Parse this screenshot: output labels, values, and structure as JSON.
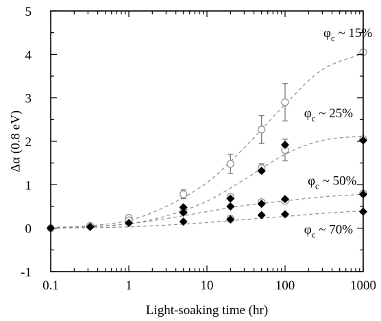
{
  "chart_data": {
    "type": "scatter",
    "title": "",
    "xlabel": "Light-soaking time (hr)",
    "ylabel": "Δα (0.8 eV)",
    "xscale": "log",
    "xlim": [
      0.1,
      1000
    ],
    "ylim": [
      -1,
      5
    ],
    "xticks": [
      "0.1",
      "1",
      "10",
      "100",
      "1000"
    ],
    "yticks": [
      "-1",
      "0",
      "1",
      "2",
      "3",
      "4",
      "5"
    ],
    "grid": false,
    "legend": "none",
    "annotations": [
      {
        "base": "φ",
        "sub": "c",
        "rest": " ~ 15%",
        "x": 310,
        "y": 4.4
      },
      {
        "base": "φ",
        "sub": "c",
        "rest": " ~ 25%",
        "x": 175,
        "y": 2.55
      },
      {
        "base": "φ",
        "sub": "c",
        "rest": " ~ 50%",
        "x": 195,
        "y": 1.0
      },
      {
        "base": "φ",
        "sub": "c",
        "rest": " ~ 70%",
        "x": 175,
        "y": -0.12
      }
    ],
    "series": [
      {
        "marker": "open-circle",
        "color": "#8a8a8a",
        "points": [
          {
            "x": 0.1,
            "y": 0.0
          },
          {
            "x": 0.32,
            "y": 0.05
          },
          {
            "x": 1,
            "y": 0.24
          },
          {
            "x": 5,
            "y": 0.78,
            "err": 0.1
          },
          {
            "x": 20,
            "y": 1.48,
            "err": 0.22
          },
          {
            "x": 50,
            "y": 2.27,
            "err": 0.32
          },
          {
            "x": 100,
            "y": 2.9,
            "err": 0.43
          },
          {
            "x": 1000,
            "y": 4.05
          }
        ],
        "fit": [
          [
            0.1,
            0.02
          ],
          [
            0.3,
            0.05
          ],
          [
            1,
            0.18
          ],
          [
            3,
            0.5
          ],
          [
            10,
            1.05
          ],
          [
            30,
            1.85
          ],
          [
            100,
            2.85
          ],
          [
            300,
            3.65
          ],
          [
            1000,
            4.02
          ]
        ]
      },
      {
        "marker": "open-circle",
        "color": "#8a8a8a",
        "points": [
          {
            "x": 0.32,
            "y": 0.05
          },
          {
            "x": 1,
            "y": 0.18
          },
          {
            "x": 5,
            "y": 0.38
          },
          {
            "x": 20,
            "y": 0.72
          },
          {
            "x": 50,
            "y": 1.38,
            "err": 0.1
          },
          {
            "x": 100,
            "y": 1.8,
            "err": 0.25
          },
          {
            "x": 1000,
            "y": 2.05
          }
        ],
        "fit": [
          [
            0.1,
            0.01
          ],
          [
            0.3,
            0.03
          ],
          [
            1,
            0.1
          ],
          [
            3,
            0.28
          ],
          [
            10,
            0.62
          ],
          [
            30,
            1.12
          ],
          [
            100,
            1.7
          ],
          [
            300,
            2.02
          ],
          [
            1000,
            2.12
          ]
        ]
      },
      {
        "marker": "open-circle",
        "color": "#8a8a8a",
        "points": [
          {
            "x": 20,
            "y": 0.22
          },
          {
            "x": 50,
            "y": 0.6
          },
          {
            "x": 100,
            "y": 0.63
          },
          {
            "x": 1000,
            "y": 0.8
          }
        ]
      },
      {
        "marker": "filled-diamond",
        "color": "#000000",
        "points": [
          {
            "x": 0.1,
            "y": 0.0
          },
          {
            "x": 0.32,
            "y": 0.03
          },
          {
            "x": 1,
            "y": 0.12
          },
          {
            "x": 5,
            "y": 0.48
          },
          {
            "x": 20,
            "y": 0.68
          },
          {
            "x": 50,
            "y": 1.32
          },
          {
            "x": 100,
            "y": 1.92
          },
          {
            "x": 1000,
            "y": 2.02
          }
        ]
      },
      {
        "marker": "filled-diamond",
        "color": "#000000",
        "points": [
          {
            "x": 5,
            "y": 0.36
          },
          {
            "x": 20,
            "y": 0.5
          },
          {
            "x": 50,
            "y": 0.56
          },
          {
            "x": 100,
            "y": 0.67
          },
          {
            "x": 1000,
            "y": 0.78
          }
        ],
        "fit": [
          [
            0.1,
            0.0
          ],
          [
            0.3,
            0.03
          ],
          [
            1,
            0.1
          ],
          [
            3,
            0.22
          ],
          [
            10,
            0.38
          ],
          [
            30,
            0.52
          ],
          [
            100,
            0.63
          ],
          [
            300,
            0.72
          ],
          [
            1000,
            0.78
          ]
        ]
      },
      {
        "marker": "filled-diamond",
        "color": "#000000",
        "points": [
          {
            "x": 5,
            "y": 0.15
          },
          {
            "x": 20,
            "y": 0.2
          },
          {
            "x": 50,
            "y": 0.3
          },
          {
            "x": 100,
            "y": 0.32
          },
          {
            "x": 1000,
            "y": 0.38
          }
        ],
        "fit": [
          [
            0.1,
            0.0
          ],
          [
            0.3,
            0.01
          ],
          [
            1,
            0.03
          ],
          [
            3,
            0.07
          ],
          [
            10,
            0.13
          ],
          [
            30,
            0.2
          ],
          [
            100,
            0.27
          ],
          [
            300,
            0.34
          ],
          [
            1000,
            0.4
          ]
        ]
      }
    ]
  }
}
